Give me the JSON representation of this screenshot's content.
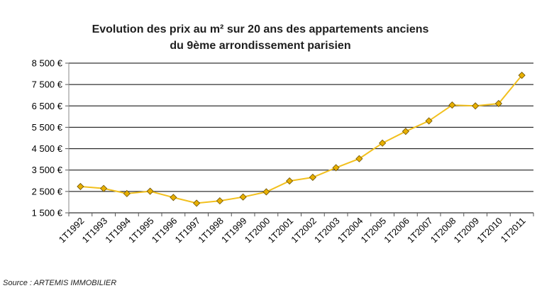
{
  "chart_data": {
    "type": "line",
    "title_lines": [
      "Evolution des prix au m² sur 20 ans des appartements anciens",
      "du 9ème arrondissement parisien"
    ],
    "xlabel": "",
    "ylabel": "",
    "x": [
      "1T1992",
      "1T1993",
      "1T1994",
      "1T1995",
      "1T1996",
      "1T1997",
      "1T1998",
      "1T1999",
      "1T2000",
      "1T2001",
      "1T2002",
      "1T2003",
      "1T2004",
      "1T2005",
      "1T2006",
      "1T2007",
      "1T2008",
      "1T2009",
      "1T2010",
      "1T2011"
    ],
    "values": [
      2730,
      2640,
      2400,
      2510,
      2220,
      1950,
      2060,
      2240,
      2480,
      2990,
      3160,
      3610,
      4030,
      4760,
      5310,
      5800,
      6540,
      6500,
      6610,
      7930
    ],
    "ylim": [
      1500,
      8500
    ],
    "yticks": [
      {
        "value": 1500,
        "label": "1 500 €"
      },
      {
        "value": 2500,
        "label": "2 500 €"
      },
      {
        "value": 3500,
        "label": "3 500 €"
      },
      {
        "value": 4500,
        "label": "4 500 €"
      },
      {
        "value": 5500,
        "label": "5 500 €"
      },
      {
        "value": 6500,
        "label": "6 500 €"
      },
      {
        "value": 7500,
        "label": "7 500 €"
      },
      {
        "value": 8500,
        "label": "8 500 €"
      }
    ],
    "grid": true,
    "legend": "none",
    "line_color": "#F2C01E",
    "marker_color": "#E8B000",
    "marker_stroke": "#6b5000",
    "grid_color": "#000000"
  },
  "source": "Source : ARTEMIS IMMOBILIER"
}
